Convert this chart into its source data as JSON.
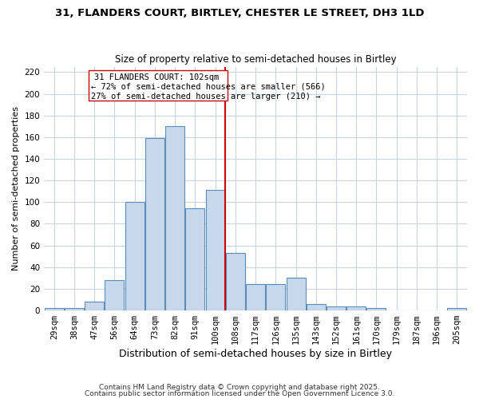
{
  "title_line1": "31, FLANDERS COURT, BIRTLEY, CHESTER LE STREET, DH3 1LD",
  "title_line2": "Size of property relative to semi-detached houses in Birtley",
  "xlabel": "Distribution of semi-detached houses by size in Birtley",
  "ylabel": "Number of semi-detached properties",
  "categories": [
    "29sqm",
    "38sqm",
    "47sqm",
    "56sqm",
    "64sqm",
    "73sqm",
    "82sqm",
    "91sqm",
    "100sqm",
    "108sqm",
    "117sqm",
    "126sqm",
    "135sqm",
    "143sqm",
    "152sqm",
    "161sqm",
    "170sqm",
    "179sqm",
    "187sqm",
    "196sqm",
    "205sqm"
  ],
  "values": [
    2,
    2,
    8,
    28,
    100,
    159,
    170,
    94,
    111,
    53,
    24,
    24,
    30,
    6,
    4,
    4,
    2,
    0,
    0,
    0,
    2
  ],
  "bar_color": "#c8d8ec",
  "bar_edgecolor": "#5b8db8",
  "bar_linewidth": 0.8,
  "vline_index": 8,
  "vline_color": "#cc0000",
  "vline_label": "31 FLANDERS COURT: 102sqm",
  "annotation_smaller": "← 72% of semi-detached houses are smaller (566)",
  "annotation_larger": "27% of semi-detached houses are larger (210) →",
  "box_color": "#cc0000",
  "ylim": [
    0,
    225
  ],
  "yticks": [
    0,
    20,
    40,
    60,
    80,
    100,
    120,
    140,
    160,
    180,
    200,
    220
  ],
  "background_color": "#ffffff",
  "grid_color": "#c8d4e0",
  "footer_line1": "Contains HM Land Registry data © Crown copyright and database right 2025.",
  "footer_line2": "Contains public sector information licensed under the Open Government Licence 3.0.",
  "title_fontsize": 9.5,
  "subtitle_fontsize": 8.5,
  "ylabel_fontsize": 8,
  "xlabel_fontsize": 9,
  "tick_fontsize": 7.5
}
